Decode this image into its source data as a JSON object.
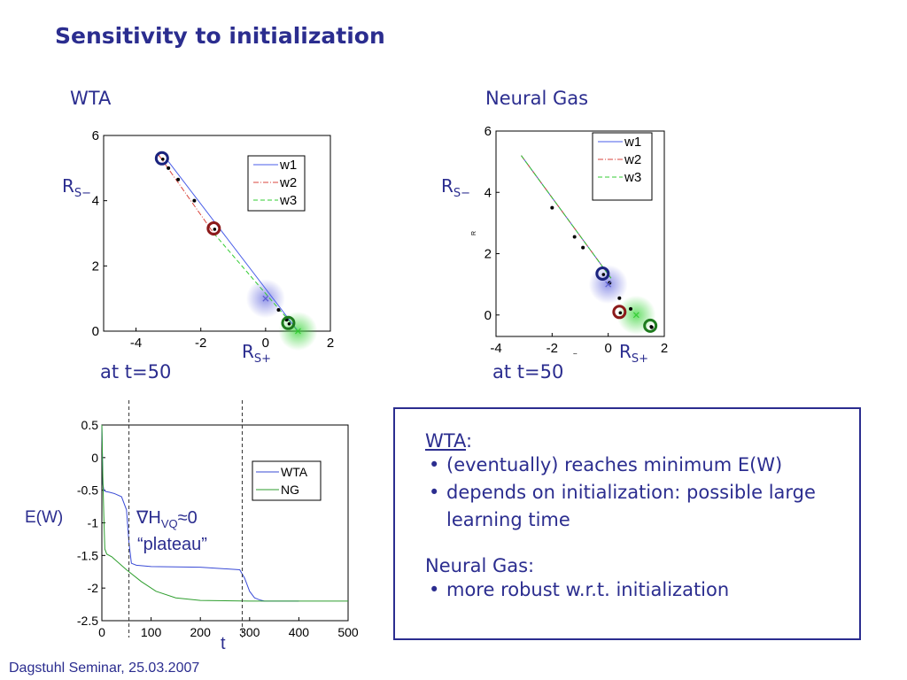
{
  "slide": {
    "title": "Sensitivity to initialization",
    "footer": "Dagstuhl Seminar, 25.03.2007",
    "wta_label": "WTA",
    "ng_label": "Neural Gas",
    "time_label_left": "at t=50",
    "time_label_right": "at t=50",
    "rs_minus": "R",
    "rs_minus_sub": "S−",
    "rs_plus": "R",
    "rs_plus_sub": "S+",
    "ew_label": "E(W)",
    "t_label": "t",
    "grad_symbol": "∇H",
    "grad_sub": "VQ",
    "grad_rest": "≈0",
    "plateau": "“plateau”",
    "tiny_axis_y": "R",
    "tiny_axis_x": "R"
  },
  "box": {
    "wta_head": "WTA",
    "wta_colon": ":",
    "wta_items": [
      "(eventually) reaches minimum E(W)",
      "depends on initialization: possible large learning time"
    ],
    "ng_head": "Neural Gas:",
    "ng_items": [
      "more robust w.r.t. initialization"
    ]
  },
  "colors": {
    "accent": "#2b2d8f",
    "w1": "#4a5ee8",
    "w2": "#d9453c",
    "w3": "#33cc33",
    "wta": "#3a4bd6",
    "ng": "#2e9e2e"
  },
  "chart_data": [
    {
      "type": "line",
      "title": "",
      "xlabel": "",
      "ylabel": "",
      "xlim": [
        -5,
        2
      ],
      "ylim": [
        0,
        6
      ],
      "xticks": [
        "-4",
        "-2",
        "0",
        "2"
      ],
      "yticks": [
        "0",
        "2",
        "4",
        "6"
      ],
      "legend": [
        "w1",
        "w2",
        "w3"
      ],
      "legend_position": "top-right",
      "series": [
        {
          "name": "w1",
          "x": [
            -3.0,
            1.0
          ],
          "y": [
            5.2,
            0.0
          ]
        },
        {
          "name": "w2",
          "x": [
            -3.3,
            -1.6
          ],
          "y": [
            5.4,
            3.0
          ]
        },
        {
          "name": "w3",
          "x": [
            -1.6,
            1.0
          ],
          "y": [
            3.0,
            0.0
          ]
        }
      ],
      "prototypes": [
        {
          "x": -3.2,
          "y": 5.3,
          "color": "#1a237e"
        },
        {
          "x": -1.6,
          "y": 3.15,
          "color": "#8b1a1a"
        },
        {
          "x": 0.7,
          "y": 0.25,
          "color": "#1e7b1e"
        }
      ],
      "points": [
        [
          -3.0,
          5.0
        ],
        [
          -2.7,
          4.65
        ],
        [
          -2.2,
          4.0
        ],
        [
          0.4,
          0.65
        ],
        [
          0.65,
          0.35
        ]
      ],
      "crosses": [
        [
          0.0,
          1.0
        ],
        [
          1.0,
          0.0
        ]
      ]
    },
    {
      "type": "line",
      "title": "",
      "xlabel": "",
      "ylabel": "",
      "xlim": [
        -4,
        2
      ],
      "ylim": [
        -0.7,
        6
      ],
      "xticks": [
        "-4",
        "-2",
        "0",
        "2"
      ],
      "yticks": [
        "0",
        "2",
        "4",
        "6"
      ],
      "legend": [
        "w1",
        "w2",
        "w3"
      ],
      "legend_position": "top-right",
      "series": [
        {
          "name": "w1",
          "x": [
            -3.1,
            0.1
          ],
          "y": [
            5.2,
            1.2
          ]
        },
        {
          "name": "w2",
          "x": [
            -3.1,
            0.1
          ],
          "y": [
            5.2,
            1.2
          ]
        },
        {
          "name": "w3",
          "x": [
            -3.1,
            0.1
          ],
          "y": [
            5.2,
            1.2
          ]
        }
      ],
      "prototypes": [
        {
          "x": -0.2,
          "y": 1.35,
          "color": "#1a237e"
        },
        {
          "x": 0.4,
          "y": 0.1,
          "color": "#8b1a1a"
        },
        {
          "x": 1.5,
          "y": -0.35,
          "color": "#1e7b1e"
        }
      ],
      "points": [
        [
          -2.0,
          3.5
        ],
        [
          -1.2,
          2.55
        ],
        [
          -0.9,
          2.2
        ],
        [
          0.05,
          1.05
        ],
        [
          0.4,
          0.55
        ],
        [
          0.8,
          0.2
        ],
        [
          1.55,
          -0.4
        ]
      ],
      "crosses": [
        [
          0.0,
          1.0
        ],
        [
          1.0,
          0.0
        ]
      ]
    },
    {
      "type": "line",
      "title": "",
      "xlabel": "t",
      "ylabel": "E(W)",
      "xlim": [
        0,
        500
      ],
      "ylim": [
        -2.5,
        0.5
      ],
      "xticks": [
        "0",
        "100",
        "200",
        "300",
        "400",
        "500"
      ],
      "yticks": [
        "0.5",
        "0",
        "-0.5",
        "-1",
        "-1.5",
        "-2",
        "-2.5"
      ],
      "legend": [
        "WTA",
        "NG"
      ],
      "legend_position": "top-right",
      "series": [
        {
          "name": "WTA",
          "x": [
            0,
            2,
            4,
            8,
            15,
            25,
            40,
            50,
            55,
            60,
            70,
            100,
            200,
            280,
            290,
            300,
            310,
            320,
            330,
            350,
            400
          ],
          "y": [
            0.5,
            -0.4,
            -0.5,
            -0.52,
            -0.53,
            -0.55,
            -0.6,
            -0.8,
            -1.3,
            -1.62,
            -1.65,
            -1.67,
            -1.68,
            -1.72,
            -1.85,
            -2.05,
            -2.15,
            -2.18,
            -2.2,
            -2.2,
            -2.2
          ]
        },
        {
          "name": "NG",
          "x": [
            0,
            2,
            4,
            6,
            10,
            20,
            50,
            80,
            110,
            150,
            200,
            300,
            400,
            500
          ],
          "y": [
            0.5,
            -0.3,
            -0.9,
            -1.4,
            -1.48,
            -1.52,
            -1.72,
            -1.9,
            -2.05,
            -2.15,
            -2.19,
            -2.2,
            -2.2,
            -2.2
          ]
        }
      ],
      "vlines": [
        55,
        285
      ]
    }
  ]
}
